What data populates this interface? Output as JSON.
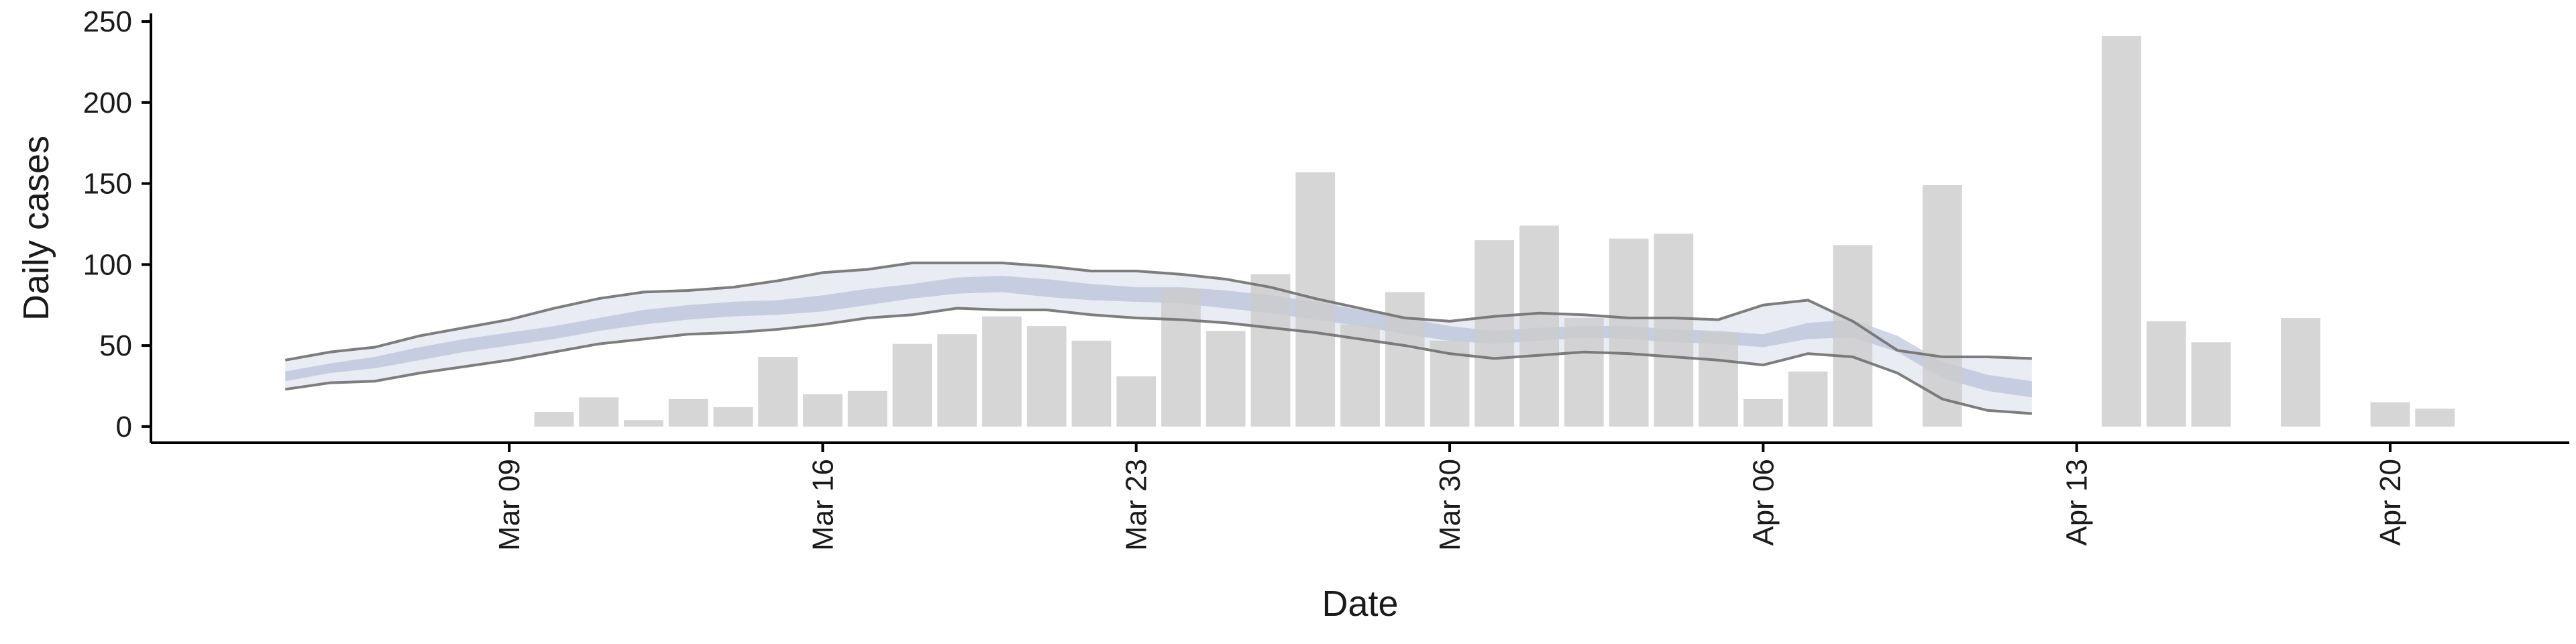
{
  "chart_data": {
    "type": "bar",
    "xlabel": "Date",
    "ylabel": "Daily cases",
    "ylim": [
      -10,
      255
    ],
    "xlim": [
      "2020-03-01",
      "2020-04-24"
    ],
    "grid": false,
    "legend": "none",
    "y_ticks": [
      0,
      50,
      100,
      150,
      200,
      250
    ],
    "x_ticks": [
      {
        "date": "2020-03-09",
        "label": "Mar 09"
      },
      {
        "date": "2020-03-16",
        "label": "Mar 16"
      },
      {
        "date": "2020-03-23",
        "label": "Mar 23"
      },
      {
        "date": "2020-03-30",
        "label": "Mar 30"
      },
      {
        "date": "2020-04-06",
        "label": "Apr 06"
      },
      {
        "date": "2020-04-13",
        "label": "Apr 13"
      },
      {
        "date": "2020-04-20",
        "label": "Apr 20"
      }
    ],
    "bars": {
      "color": "#cccccc",
      "x": [
        "2020-03-10",
        "2020-03-11",
        "2020-03-12",
        "2020-03-13",
        "2020-03-14",
        "2020-03-15",
        "2020-03-16",
        "2020-03-17",
        "2020-03-18",
        "2020-03-19",
        "2020-03-20",
        "2020-03-21",
        "2020-03-22",
        "2020-03-23",
        "2020-03-24",
        "2020-03-25",
        "2020-03-26",
        "2020-03-27",
        "2020-03-28",
        "2020-03-29",
        "2020-03-30",
        "2020-03-31",
        "2020-04-01",
        "2020-04-02",
        "2020-04-03",
        "2020-04-04",
        "2020-04-05",
        "2020-04-06",
        "2020-04-07",
        "2020-04-08",
        "2020-04-10",
        "2020-04-14",
        "2020-04-15",
        "2020-04-16",
        "2020-04-18",
        "2020-04-20",
        "2020-04-21"
      ],
      "values": [
        9,
        18,
        4,
        17,
        12,
        43,
        20,
        22,
        51,
        57,
        68,
        62,
        53,
        31,
        85,
        59,
        94,
        157,
        63,
        83,
        53,
        115,
        124,
        67,
        116,
        119,
        58,
        17,
        34,
        112,
        149,
        241,
        65,
        52,
        67,
        15,
        11
      ]
    },
    "estimate": {
      "band_color": "#a9b4d1",
      "line_color": "#707070",
      "x": [
        "2020-03-04",
        "2020-03-05",
        "2020-03-06",
        "2020-03-07",
        "2020-03-08",
        "2020-03-09",
        "2020-03-10",
        "2020-03-11",
        "2020-03-12",
        "2020-03-13",
        "2020-03-14",
        "2020-03-15",
        "2020-03-16",
        "2020-03-17",
        "2020-03-18",
        "2020-03-19",
        "2020-03-20",
        "2020-03-21",
        "2020-03-22",
        "2020-03-23",
        "2020-03-24",
        "2020-03-25",
        "2020-03-26",
        "2020-03-27",
        "2020-03-28",
        "2020-03-29",
        "2020-03-30",
        "2020-03-31",
        "2020-04-01",
        "2020-04-02",
        "2020-04-03",
        "2020-04-04",
        "2020-04-05",
        "2020-04-06",
        "2020-04-07",
        "2020-04-08",
        "2020-04-09",
        "2020-04-10",
        "2020-04-11",
        "2020-04-12"
      ],
      "lower90": [
        23,
        27,
        28,
        33,
        37,
        41,
        46,
        51,
        54,
        57,
        58,
        60,
        63,
        67,
        69,
        73,
        72,
        72,
        69,
        67,
        66,
        64,
        61,
        58,
        54,
        50,
        45,
        42,
        44,
        46,
        45,
        43,
        41,
        38,
        45,
        43,
        33,
        17,
        10,
        8
      ],
      "lower50": [
        28,
        33,
        36,
        41,
        46,
        50,
        54,
        59,
        63,
        66,
        68,
        69,
        71,
        75,
        79,
        82,
        83,
        80,
        78,
        77,
        76,
        73,
        70,
        66,
        62,
        57,
        53,
        51,
        53,
        55,
        54,
        52,
        51,
        49,
        54,
        55,
        46,
        30,
        22,
        18
      ],
      "upper50": [
        34,
        39,
        43,
        49,
        54,
        58,
        62,
        67,
        72,
        75,
        77,
        78,
        81,
        85,
        88,
        92,
        93,
        91,
        88,
        86,
        86,
        84,
        81,
        77,
        72,
        67,
        62,
        59,
        61,
        62,
        62,
        60,
        59,
        57,
        64,
        66,
        56,
        40,
        32,
        28
      ],
      "upper90": [
        41,
        46,
        49,
        56,
        61,
        66,
        73,
        79,
        83,
        84,
        86,
        90,
        95,
        97,
        101,
        101,
        101,
        99,
        96,
        96,
        94,
        91,
        86,
        79,
        73,
        67,
        65,
        68,
        70,
        69,
        67,
        67,
        66,
        75,
        78,
        65,
        47,
        43,
        43,
        42
      ]
    }
  }
}
